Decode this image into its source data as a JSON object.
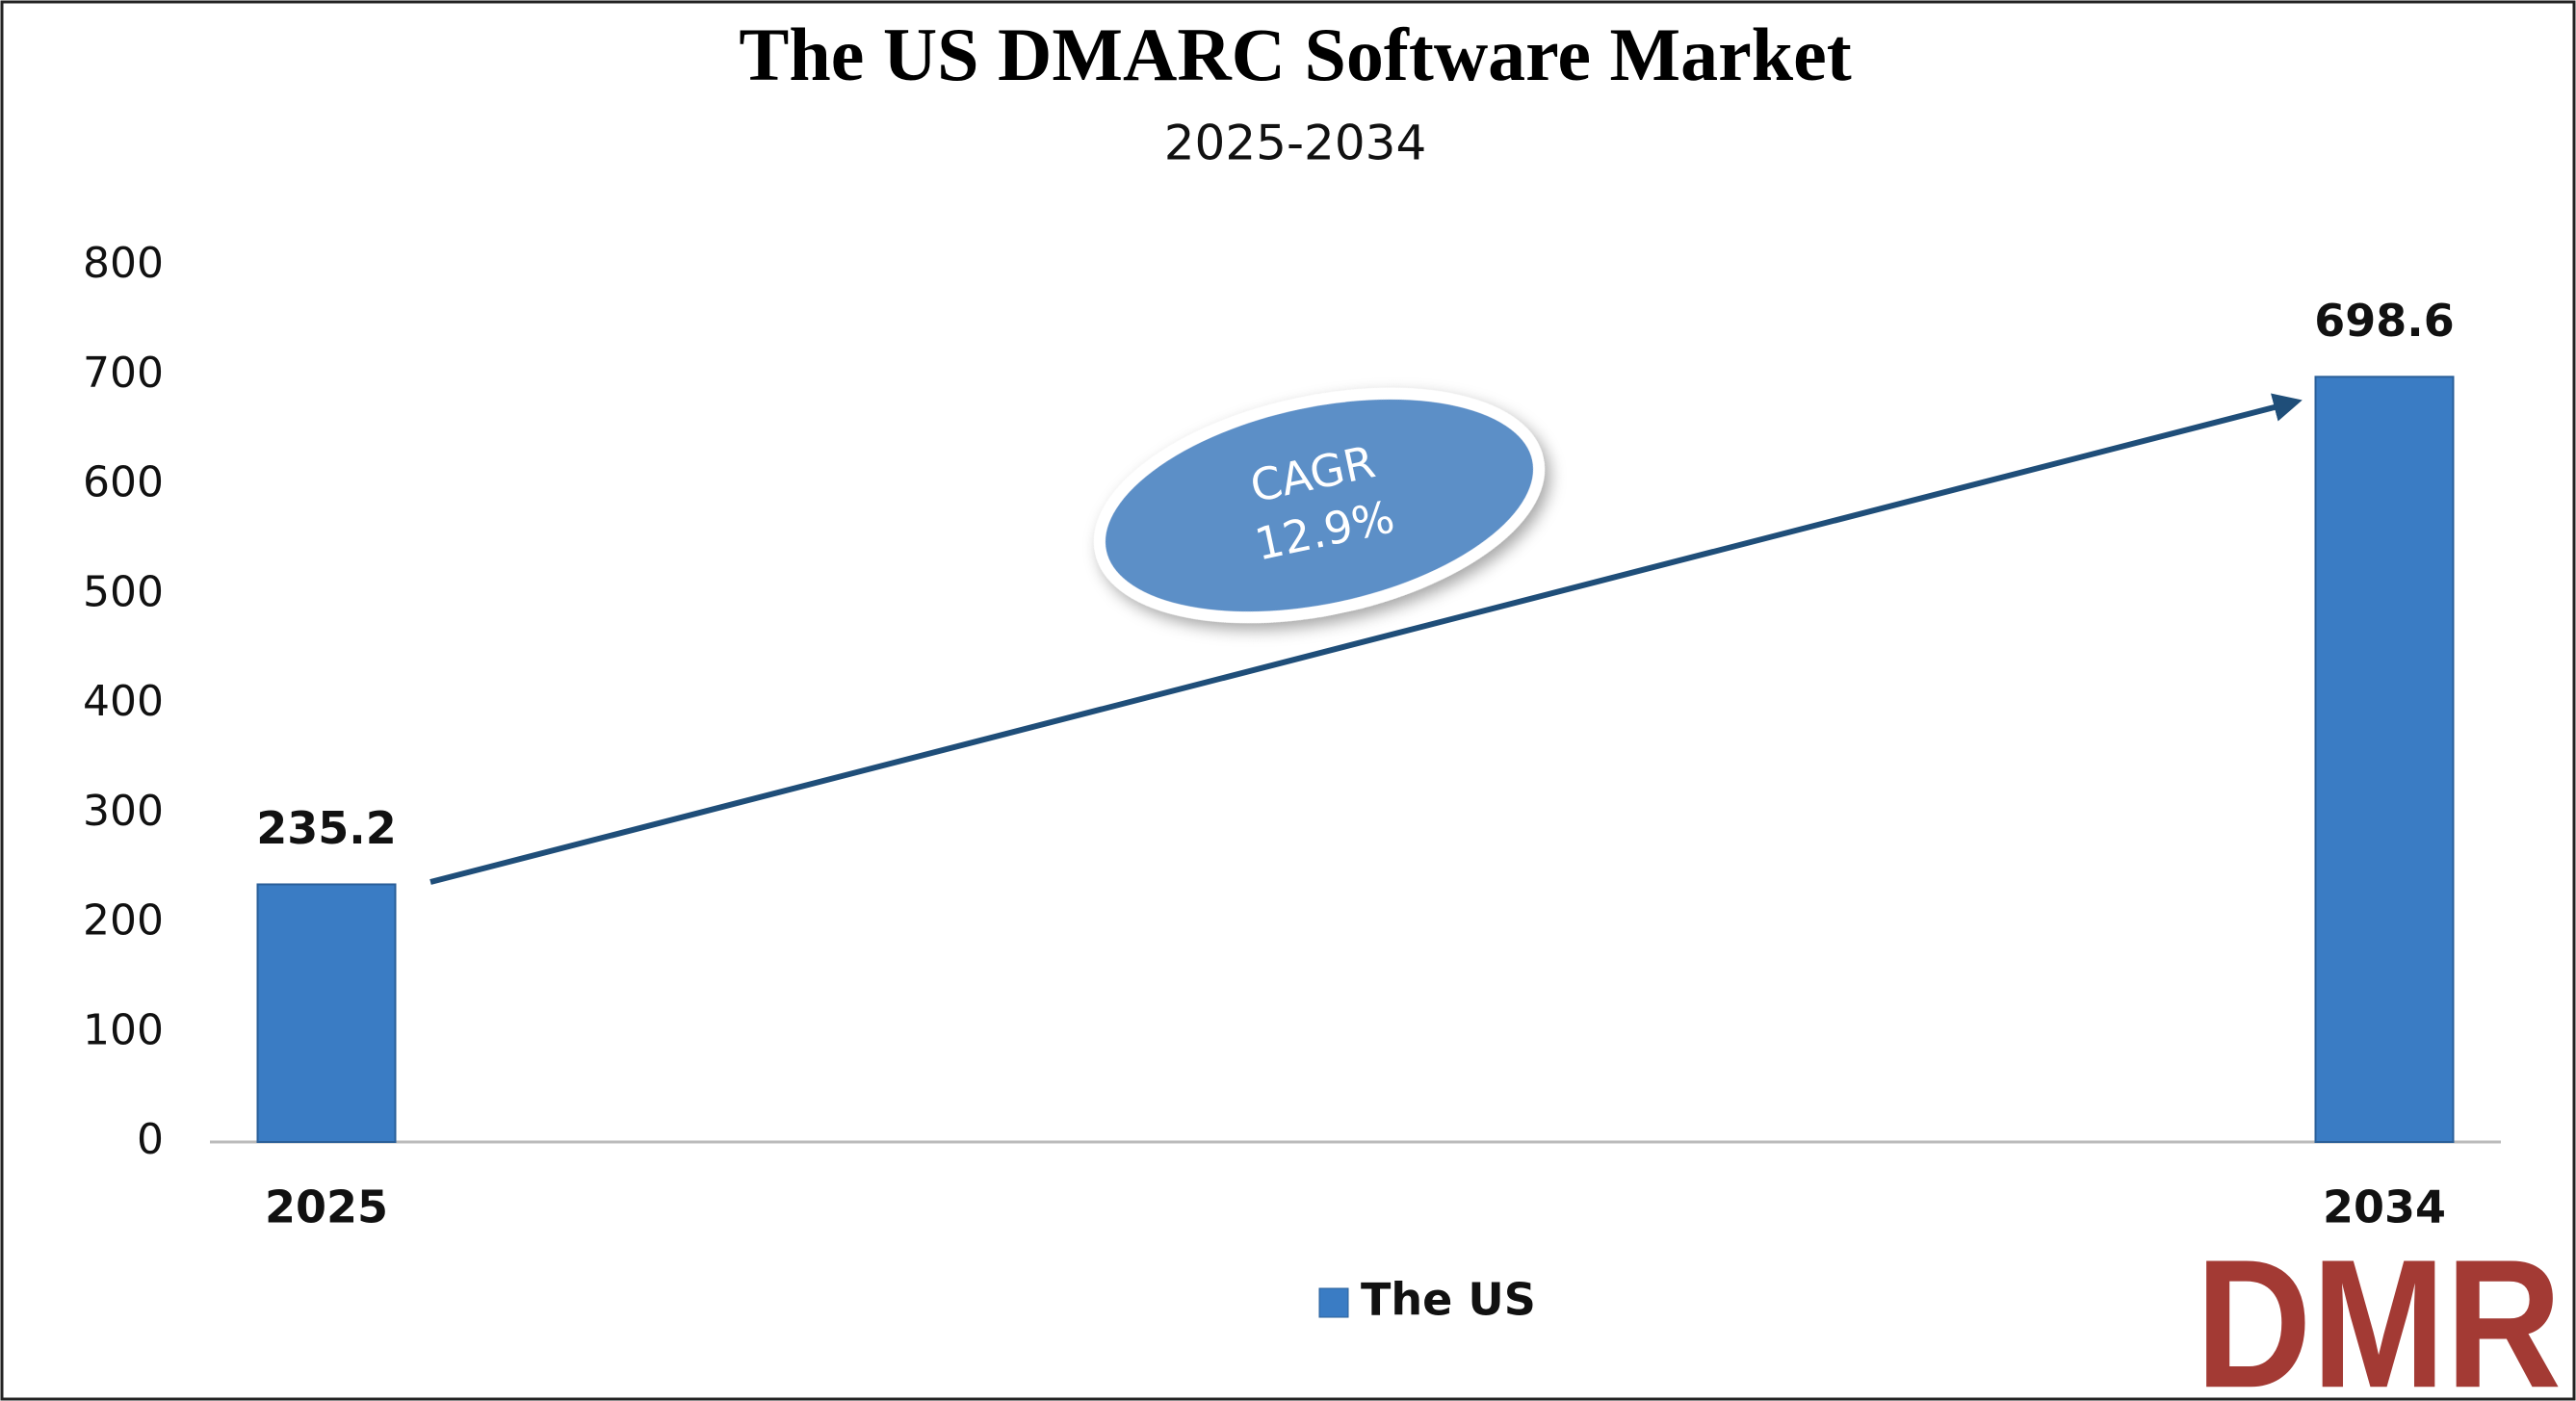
{
  "chart_data": {
    "type": "bar",
    "title": "The US DMARC Software Market",
    "subtitle": "2025-2034",
    "categories": [
      "2025",
      "2034"
    ],
    "series": [
      {
        "name": "The US",
        "color": "#3a7cc4",
        "values": [
          235.2,
          698.6
        ]
      }
    ],
    "ylim": [
      0,
      800
    ],
    "yticks": [
      0,
      100,
      200,
      300,
      400,
      500,
      600,
      700,
      800
    ],
    "grid": false,
    "annotation": [
      "CAGR",
      "12.9%"
    ],
    "logo": "DMR"
  }
}
